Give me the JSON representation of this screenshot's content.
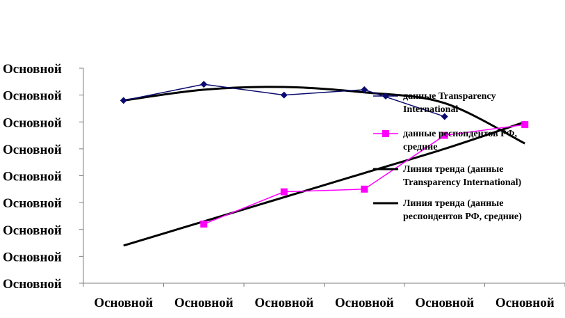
{
  "chart_data": {
    "type": "line",
    "title": "",
    "xlabel": "",
    "ylabel": "",
    "y_tick_labels": [
      "Основной",
      "Основной",
      "Основной",
      "Основной",
      "Основной",
      "Основной",
      "Основной",
      "Основной",
      "Основной"
    ],
    "x_tick_labels": [
      "Основной",
      "Основной",
      "Основной",
      "Основной",
      "Основной",
      "Основной"
    ],
    "ylim": [
      0,
      8
    ],
    "x": [
      1,
      2,
      3,
      4,
      5,
      6
    ],
    "grid": false,
    "legend_position": "right",
    "series": [
      {
        "key": "ti",
        "name": "данные Transparency International",
        "legend_lines": [
          "данные Transparency",
          "International"
        ],
        "values": [
          6.8,
          7.4,
          7.0,
          7.2,
          6.2,
          null
        ],
        "color": "#0A0A6E",
        "marker": "diamond"
      },
      {
        "key": "rf",
        "name": "данные респондентов РФ, средние",
        "legend_lines": [
          "данные респондентов РФ,",
          "средние"
        ],
        "values": [
          null,
          2.2,
          3.4,
          3.5,
          5.5,
          5.9
        ],
        "color": "#FF00FF",
        "marker": "square"
      },
      {
        "key": "trend_ti",
        "name": "Линия тренда (данные Transparency International)",
        "legend_lines": [
          "Линия тренда (данные",
          "Transparency International)"
        ],
        "values": [
          6.8,
          7.2,
          7.3,
          7.1,
          6.7,
          5.2
        ],
        "color": "#000000",
        "marker": "none"
      },
      {
        "key": "trend_rf",
        "name": "Линия тренда (данные респондентов РФ, средние)",
        "legend_lines": [
          "Линия тренда (данные",
          "респондентов РФ, средние)"
        ],
        "values": [
          1.4,
          2.3,
          3.2,
          4.1,
          5.0,
          6.0
        ],
        "color": "#000000",
        "marker": "none"
      }
    ]
  }
}
